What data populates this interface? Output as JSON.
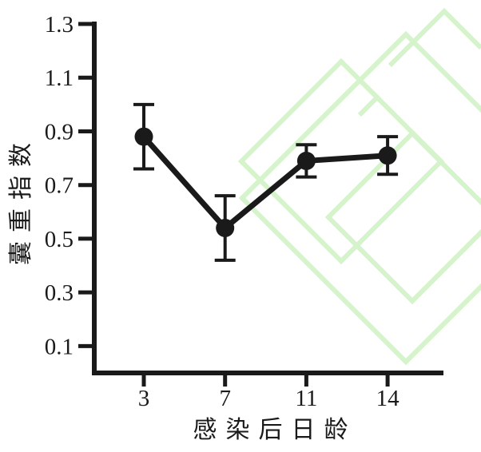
{
  "figure": {
    "colors": {
      "series": "#1a1a1a",
      "axis": "#1a1a1a",
      "text": "#1a1a1a",
      "watermark": "#d6f4cc",
      "background": "#ffffff"
    }
  },
  "chart_data": {
    "type": "line",
    "title": "",
    "x_categories": [
      "3",
      "7",
      "11",
      "14"
    ],
    "series": [
      {
        "name": "囊重指数",
        "values": [
          0.88,
          0.54,
          0.79,
          0.81
        ],
        "errors": [
          0.12,
          0.12,
          0.06,
          0.07
        ]
      }
    ],
    "xlabel": "感染后日龄",
    "ylabel": "囊重指数",
    "y_ticks": [
      1.3,
      1.1,
      0.9,
      0.7,
      0.5,
      0.3,
      0.1
    ],
    "ylim": [
      0,
      1.3
    ],
    "grid": false,
    "legend": "none",
    "marker": "filled-circle",
    "error_bars": true
  }
}
